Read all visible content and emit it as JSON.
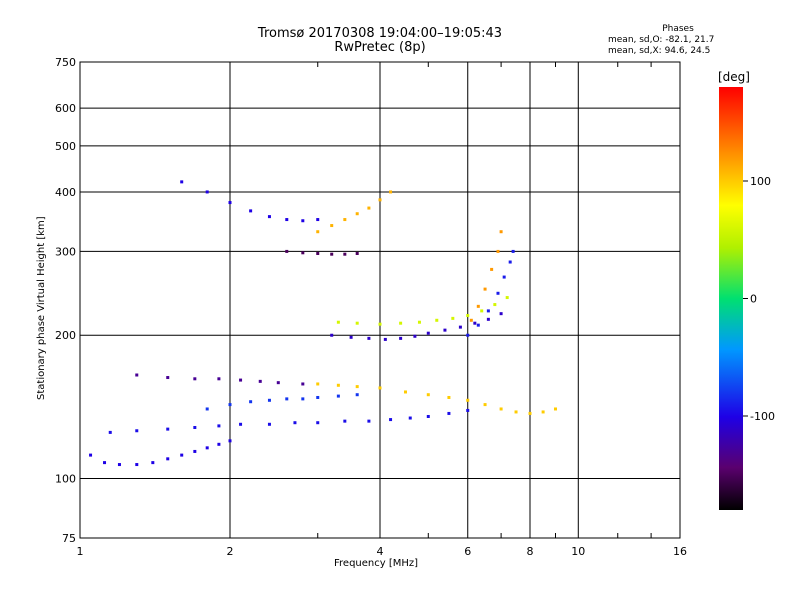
{
  "chart_data": {
    "type": "scatter",
    "title": "Tromsø 20170308 19:04:00–19:05:43",
    "subtitle": "RwPretec (8p)",
    "xlabel": "Frequency [MHz]",
    "ylabel": "Stationary phase Virtual Height [km]",
    "x_scale": "log",
    "y_scale": "log",
    "xlim": [
      1,
      16
    ],
    "ylim": [
      75,
      750
    ],
    "x_ticks": [
      "1",
      "2",
      "4",
      "6",
      "8",
      "10",
      "16"
    ],
    "y_ticks": [
      "75",
      "100",
      "200",
      "300",
      "400",
      "500",
      "600",
      "750"
    ],
    "grid": true,
    "stats": {
      "heading": "Phases",
      "line1": "mean, sd,O: -82.1, 21.7",
      "line2": "mean, sd,X: 94.6, 24.5"
    },
    "colorbar": {
      "unit": "[deg]",
      "ticks": [
        "100",
        "0",
        "-100"
      ],
      "range": [
        -180,
        180
      ],
      "colormap": "rainbow"
    },
    "series": [
      {
        "trace": "O-lower",
        "x": [
          1.05,
          1.12,
          1.2,
          1.3,
          1.4,
          1.5,
          1.6,
          1.7,
          1.8,
          1.9,
          2.0
        ],
        "y": [
          112,
          108,
          107,
          107,
          108,
          110,
          112,
          114,
          116,
          118,
          120
        ],
        "phase": -100
      },
      {
        "trace": "O-lower-2",
        "x": [
          1.15,
          1.3,
          1.5,
          1.7,
          1.9,
          2.1,
          2.4,
          2.7,
          3.0,
          3.4,
          3.8,
          4.2,
          4.6,
          5.0,
          5.5,
          6.0
        ],
        "y": [
          125,
          126,
          127,
          128,
          129,
          130,
          130,
          131,
          131,
          132,
          132,
          133,
          134,
          135,
          137,
          139
        ],
        "phase": -95
      },
      {
        "trace": "O-mid",
        "x": [
          1.3,
          1.5,
          1.7,
          1.9,
          2.1,
          2.3,
          2.5,
          2.8
        ],
        "y": [
          165,
          163,
          162,
          162,
          161,
          160,
          159,
          158
        ],
        "phase": -130
      },
      {
        "trace": "O-band",
        "x": [
          1.8,
          2.0,
          2.2,
          2.4,
          2.6,
          2.8,
          3.0,
          3.3,
          3.6
        ],
        "y": [
          140,
          143,
          145,
          146,
          147,
          147,
          148,
          149,
          150
        ],
        "phase": -80
      },
      {
        "trace": "F-band-O",
        "x": [
          3.2,
          3.5,
          3.8,
          4.1,
          4.4,
          4.7,
          5.0,
          5.4,
          5.8,
          6.2,
          6.6,
          7.0
        ],
        "y": [
          200,
          198,
          197,
          196,
          197,
          199,
          202,
          205,
          208,
          212,
          216,
          222
        ],
        "phase": -110
      },
      {
        "trace": "F-band-X",
        "x": [
          3.3,
          3.6,
          4.0,
          4.4,
          4.8,
          5.2,
          5.6,
          6.0,
          6.4,
          6.8,
          7.2
        ],
        "y": [
          213,
          212,
          211,
          212,
          213,
          215,
          217,
          220,
          225,
          232,
          240
        ],
        "phase": 60
      },
      {
        "trace": "F-rise-O",
        "x": [
          6.0,
          6.3,
          6.6,
          6.9,
          7.1,
          7.3,
          7.4
        ],
        "y": [
          200,
          210,
          225,
          245,
          265,
          285,
          300
        ],
        "phase": -90
      },
      {
        "trace": "F-rise-X",
        "x": [
          6.1,
          6.3,
          6.5,
          6.7,
          6.9,
          7.0
        ],
        "y": [
          215,
          230,
          250,
          275,
          300,
          330
        ],
        "phase": 120
      },
      {
        "trace": "Upper-O",
        "x": [
          1.6,
          1.8,
          2.0,
          2.2,
          2.4,
          2.6,
          2.8,
          3.0
        ],
        "y": [
          420,
          400,
          380,
          365,
          355,
          350,
          348,
          350
        ],
        "phase": -100
      },
      {
        "trace": "Upper-X",
        "x": [
          3.0,
          3.2,
          3.4,
          3.6,
          3.8,
          4.0,
          4.2
        ],
        "y": [
          330,
          340,
          350,
          360,
          370,
          385,
          400
        ],
        "phase": 110
      },
      {
        "trace": "Upper-cusp",
        "x": [
          2.6,
          2.8,
          3.0,
          3.2,
          3.4,
          3.6
        ],
        "y": [
          300,
          298,
          297,
          296,
          296,
          297
        ],
        "phase": -150
      },
      {
        "trace": "X-lower",
        "x": [
          3.0,
          3.3,
          3.6,
          4.0,
          4.5,
          5.0,
          5.5,
          6.0,
          6.5,
          7.0,
          7.5,
          8.0,
          8.5,
          9.0
        ],
        "y": [
          158,
          157,
          156,
          155,
          152,
          150,
          148,
          146,
          143,
          140,
          138,
          137,
          138,
          140
        ],
        "phase": 100
      }
    ]
  }
}
